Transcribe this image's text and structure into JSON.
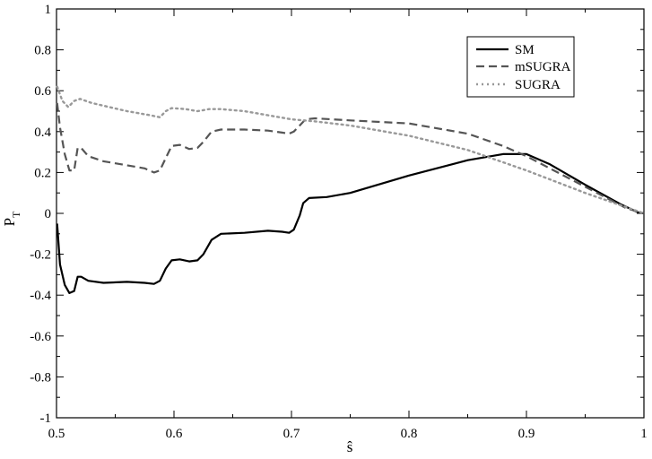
{
  "chart_data": {
    "type": "line",
    "xlabel": "ŝ",
    "ylabel": "P",
    "ylabel_sub": "T",
    "xlim": [
      0.5,
      1.0
    ],
    "ylim": [
      -1.0,
      1.0
    ],
    "xticks": [
      0.5,
      0.6,
      0.7,
      0.8,
      0.9,
      1.0
    ],
    "xtick_labels": [
      "0.5",
      "0.6",
      "0.7",
      "0.8",
      "0.9",
      "1"
    ],
    "yticks": [
      -1.0,
      -0.8,
      -0.6,
      -0.4,
      -0.2,
      0.0,
      0.2,
      0.4,
      0.6,
      0.8,
      1.0
    ],
    "ytick_labels": [
      "-1",
      "-0.8",
      "-0.6",
      "-0.4",
      "-0.2",
      "0",
      "0.2",
      "0.4",
      "0.6",
      "0.8",
      "1"
    ],
    "grid": false,
    "legend_position": "top-right",
    "series": [
      {
        "name": "SM",
        "color": "#000000",
        "style": "solid",
        "points": [
          [
            0.5005,
            -0.05
          ],
          [
            0.503,
            -0.25
          ],
          [
            0.507,
            -0.35
          ],
          [
            0.511,
            -0.39
          ],
          [
            0.515,
            -0.38
          ],
          [
            0.518,
            -0.31
          ],
          [
            0.521,
            -0.31
          ],
          [
            0.527,
            -0.33
          ],
          [
            0.54,
            -0.34
          ],
          [
            0.56,
            -0.335
          ],
          [
            0.575,
            -0.34
          ],
          [
            0.583,
            -0.345
          ],
          [
            0.588,
            -0.33
          ],
          [
            0.593,
            -0.27
          ],
          [
            0.598,
            -0.23
          ],
          [
            0.605,
            -0.225
          ],
          [
            0.613,
            -0.235
          ],
          [
            0.62,
            -0.23
          ],
          [
            0.625,
            -0.2
          ],
          [
            0.632,
            -0.13
          ],
          [
            0.64,
            -0.1
          ],
          [
            0.66,
            -0.095
          ],
          [
            0.68,
            -0.085
          ],
          [
            0.692,
            -0.09
          ],
          [
            0.698,
            -0.095
          ],
          [
            0.702,
            -0.08
          ],
          [
            0.707,
            -0.01
          ],
          [
            0.71,
            0.05
          ],
          [
            0.715,
            0.075
          ],
          [
            0.73,
            0.08
          ],
          [
            0.75,
            0.1
          ],
          [
            0.8,
            0.185
          ],
          [
            0.85,
            0.26
          ],
          [
            0.88,
            0.29
          ],
          [
            0.9,
            0.29
          ],
          [
            0.92,
            0.24
          ],
          [
            0.95,
            0.14
          ],
          [
            0.98,
            0.045
          ],
          [
            0.995,
            0.005
          ],
          [
            1.0,
            0.0
          ]
        ]
      },
      {
        "name": "mSUGRA",
        "color": "#555555",
        "style": "dashed",
        "points": [
          [
            0.5005,
            0.54
          ],
          [
            0.503,
            0.42
          ],
          [
            0.507,
            0.29
          ],
          [
            0.511,
            0.21
          ],
          [
            0.515,
            0.21
          ],
          [
            0.518,
            0.32
          ],
          [
            0.521,
            0.32
          ],
          [
            0.527,
            0.28
          ],
          [
            0.54,
            0.255
          ],
          [
            0.56,
            0.235
          ],
          [
            0.575,
            0.22
          ],
          [
            0.583,
            0.2
          ],
          [
            0.588,
            0.21
          ],
          [
            0.593,
            0.27
          ],
          [
            0.598,
            0.33
          ],
          [
            0.605,
            0.335
          ],
          [
            0.613,
            0.315
          ],
          [
            0.62,
            0.32
          ],
          [
            0.625,
            0.35
          ],
          [
            0.632,
            0.4
          ],
          [
            0.64,
            0.41
          ],
          [
            0.66,
            0.41
          ],
          [
            0.68,
            0.405
          ],
          [
            0.692,
            0.395
          ],
          [
            0.698,
            0.39
          ],
          [
            0.702,
            0.4
          ],
          [
            0.707,
            0.43
          ],
          [
            0.712,
            0.46
          ],
          [
            0.72,
            0.465
          ],
          [
            0.75,
            0.455
          ],
          [
            0.8,
            0.44
          ],
          [
            0.85,
            0.39
          ],
          [
            0.88,
            0.33
          ],
          [
            0.9,
            0.28
          ],
          [
            0.93,
            0.19
          ],
          [
            0.96,
            0.1
          ],
          [
            0.985,
            0.025
          ],
          [
            1.0,
            0.0
          ]
        ]
      },
      {
        "name": "SUGRA",
        "color": "#999999",
        "style": "dotted",
        "points": [
          [
            0.5005,
            0.62
          ],
          [
            0.505,
            0.55
          ],
          [
            0.51,
            0.52
          ],
          [
            0.515,
            0.55
          ],
          [
            0.52,
            0.56
          ],
          [
            0.53,
            0.54
          ],
          [
            0.56,
            0.5
          ],
          [
            0.58,
            0.48
          ],
          [
            0.588,
            0.47
          ],
          [
            0.593,
            0.5
          ],
          [
            0.598,
            0.515
          ],
          [
            0.61,
            0.51
          ],
          [
            0.62,
            0.5
          ],
          [
            0.63,
            0.51
          ],
          [
            0.64,
            0.51
          ],
          [
            0.66,
            0.5
          ],
          [
            0.7,
            0.46
          ],
          [
            0.72,
            0.45
          ],
          [
            0.75,
            0.43
          ],
          [
            0.8,
            0.38
          ],
          [
            0.85,
            0.31
          ],
          [
            0.9,
            0.21
          ],
          [
            0.95,
            0.1
          ],
          [
            1.0,
            0.0
          ]
        ]
      }
    ]
  }
}
